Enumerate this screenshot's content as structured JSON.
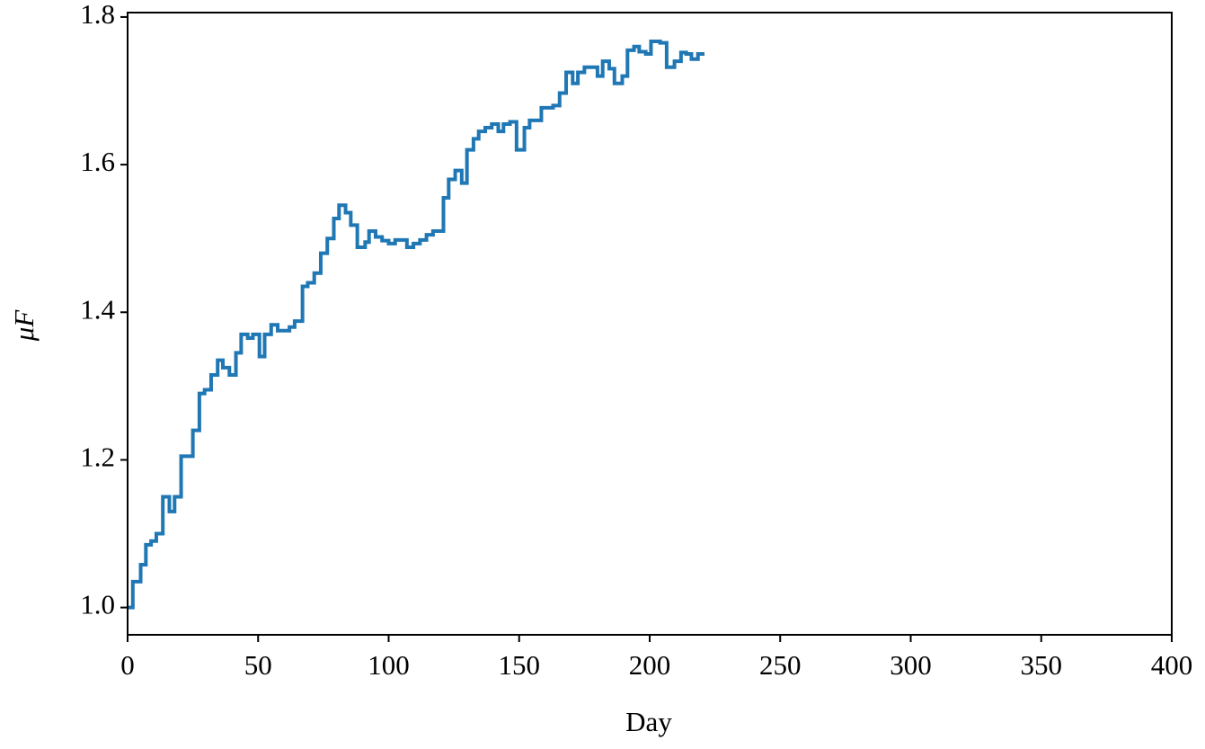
{
  "chart_data": {
    "type": "line",
    "step": "post",
    "xlabel": "Day",
    "ylabel": "μF",
    "xlim": [
      0,
      400
    ],
    "xticks": [
      0,
      50,
      100,
      150,
      200,
      250,
      300,
      350,
      400
    ],
    "ylim": [
      0.963,
      1.806
    ],
    "yticks": [
      {
        "value": 1.0,
        "label": "1.0"
      },
      1.2,
      1.4,
      1.6,
      1.8
    ],
    "series": [
      {
        "color": "#1f77b4",
        "x": [
          0,
          2,
          5,
          7,
          9,
          11,
          13.5,
          16,
          18,
          20.5,
          25,
          27.5,
          29.5,
          32,
          34.5,
          36.5,
          39,
          41.5,
          43.5,
          46,
          48,
          50.5,
          52.5,
          55,
          57.5,
          62,
          64,
          67,
          69,
          71.5,
          74,
          76.5,
          79,
          81,
          83.5,
          85.5,
          88,
          91,
          92.5,
          95,
          97.5,
          100,
          102.5,
          107,
          109.5,
          112,
          114.5,
          117,
          121,
          123,
          125.5,
          128,
          130,
          132.5,
          134.5,
          137,
          139.5,
          142,
          144,
          146.5,
          149,
          152,
          154,
          158.5,
          163,
          165.5,
          168,
          170.5,
          172.5,
          175,
          180,
          182,
          184.5,
          186.5,
          189.5,
          191.5,
          194,
          196,
          198.5,
          200.5,
          204,
          206.5,
          209.5,
          212,
          214,
          216,
          218.5,
          221
        ],
        "values": [
          1.0,
          1.035,
          1.058,
          1.085,
          1.09,
          1.1,
          1.15,
          1.13,
          1.15,
          1.205,
          1.24,
          1.29,
          1.295,
          1.315,
          1.335,
          1.325,
          1.315,
          1.345,
          1.37,
          1.365,
          1.37,
          1.34,
          1.37,
          1.383,
          1.375,
          1.38,
          1.388,
          1.435,
          1.44,
          1.453,
          1.48,
          1.5,
          1.527,
          1.545,
          1.535,
          1.518,
          1.488,
          1.495,
          1.51,
          1.502,
          1.497,
          1.493,
          1.498,
          1.488,
          1.493,
          1.498,
          1.505,
          1.51,
          1.555,
          1.58,
          1.592,
          1.575,
          1.62,
          1.635,
          1.645,
          1.65,
          1.655,
          1.645,
          1.655,
          1.658,
          1.62,
          1.65,
          1.66,
          1.677,
          1.68,
          1.697,
          1.725,
          1.71,
          1.725,
          1.732,
          1.72,
          1.74,
          1.73,
          1.71,
          1.72,
          1.755,
          1.76,
          1.753,
          1.75,
          1.767,
          1.765,
          1.732,
          1.74,
          1.752,
          1.75,
          1.743,
          1.75,
          1.75
        ]
      }
    ]
  }
}
